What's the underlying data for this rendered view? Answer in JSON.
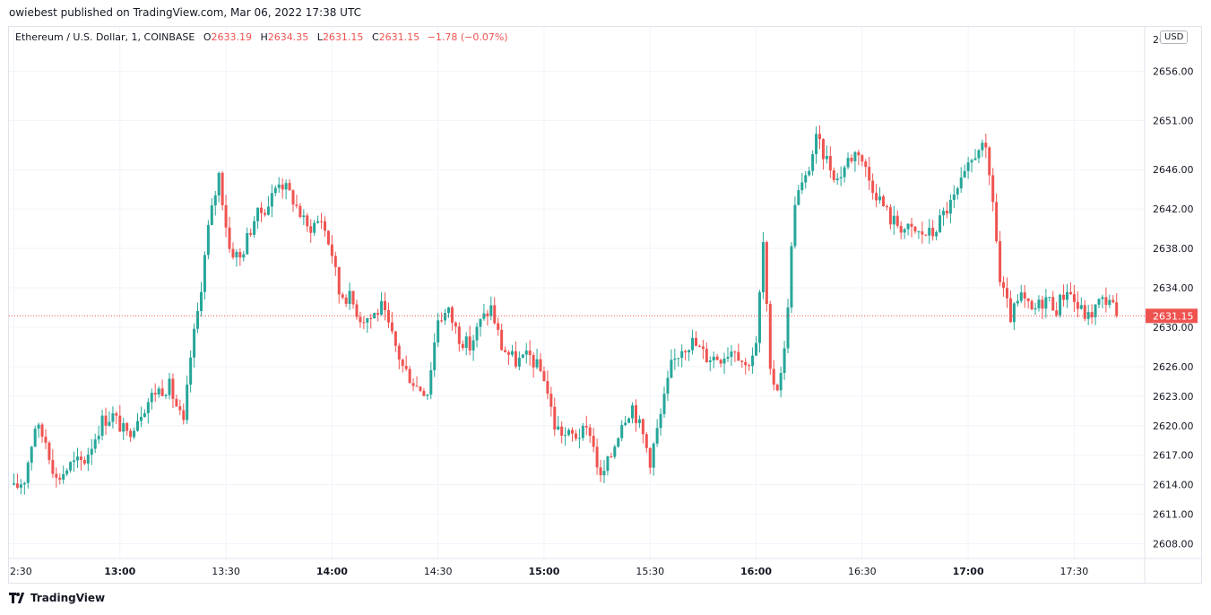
{
  "header": {
    "published": "owiebest published on TradingView.com, Mar 06, 2022 17:38 UTC"
  },
  "legend": {
    "symbol": "Ethereum / U.S. Dollar, 1, COINBASE",
    "open_label": "O",
    "open": "2633.19",
    "high_label": "H",
    "high": "2634.35",
    "low_label": "L",
    "low": "2631.15",
    "close_label": "C",
    "close": "2631.15",
    "change": "−1.78 (−0.07%)"
  },
  "currency_badge": "USD",
  "last_price_label": "2631.15",
  "footer": {
    "brand": "TradingView",
    "logo_icon": "tradingview-logo-icon"
  },
  "colors": {
    "up": "#26a69a",
    "down": "#ef5350",
    "grid": "#f0f3fa",
    "price_line": "#ef5350"
  },
  "chart_data": {
    "type": "candlestick",
    "title": "Ethereum / U.S. Dollar, 1, COINBASE",
    "ylim": [
      2606.5,
      2660.5
    ],
    "y_ticks": [
      2608.0,
      2611.0,
      2614.0,
      2617.0,
      2620.0,
      2623.0,
      2626.0,
      2630.0,
      2634.0,
      2638.0,
      2642.0,
      2646.0,
      2651.0,
      2656.0
    ],
    "y_tick_labels": [
      "2608.00",
      "2611.00",
      "2614.00",
      "2617.00",
      "2620.00",
      "2623.00",
      "2626.00",
      "2630.00",
      "2634.00",
      "2638.00",
      "2642.00",
      "2646.00",
      "2651.00",
      "2656.00"
    ],
    "x_ticks": [
      {
        "label": "2:30",
        "minute": 0,
        "bold": false
      },
      {
        "label": "13:00",
        "minute": 30,
        "bold": true
      },
      {
        "label": "13:30",
        "minute": 60,
        "bold": false
      },
      {
        "label": "14:00",
        "minute": 90,
        "bold": true
      },
      {
        "label": "14:30",
        "minute": 120,
        "bold": false
      },
      {
        "label": "15:00",
        "minute": 150,
        "bold": true
      },
      {
        "label": "15:30",
        "minute": 180,
        "bold": false
      },
      {
        "label": "16:00",
        "minute": 210,
        "bold": true
      },
      {
        "label": "16:30",
        "minute": 240,
        "bold": false
      },
      {
        "label": "17:00",
        "minute": 270,
        "bold": true
      },
      {
        "label": "17:30",
        "minute": 300,
        "bold": false
      }
    ],
    "last_price": 2631.15,
    "close_path": [
      [
        0,
        2613.5
      ],
      [
        3,
        2614.6
      ],
      [
        6,
        2620.0
      ],
      [
        9,
        2618.5
      ],
      [
        12,
        2614.5
      ],
      [
        16,
        2616.0
      ],
      [
        20,
        2616.5
      ],
      [
        25,
        2620.5
      ],
      [
        28,
        2621.0
      ],
      [
        32,
        2619.0
      ],
      [
        36,
        2621.5
      ],
      [
        40,
        2623.5
      ],
      [
        44,
        2624.0
      ],
      [
        48,
        2620.0
      ],
      [
        50,
        2627.0
      ],
      [
        52,
        2631.5
      ],
      [
        55,
        2640.0
      ],
      [
        58,
        2645.5
      ],
      [
        61,
        2638.0
      ],
      [
        64,
        2637.0
      ],
      [
        68,
        2641.0
      ],
      [
        72,
        2642.5
      ],
      [
        75,
        2645.0
      ],
      [
        79,
        2643.0
      ],
      [
        83,
        2640.0
      ],
      [
        87,
        2641.0
      ],
      [
        90,
        2637.5
      ],
      [
        92,
        2633.5
      ],
      [
        95,
        2633.0
      ],
      [
        98,
        2631.0
      ],
      [
        101,
        2631.0
      ],
      [
        104,
        2632.0
      ],
      [
        107,
        2629.0
      ],
      [
        110,
        2626.0
      ],
      [
        114,
        2624.0
      ],
      [
        117,
        2623.5
      ],
      [
        120,
        2631.0
      ],
      [
        123,
        2631.5
      ],
      [
        126,
        2629.0
      ],
      [
        129,
        2628.0
      ],
      [
        132,
        2630.5
      ],
      [
        135,
        2632.0
      ],
      [
        138,
        2628.0
      ],
      [
        142,
        2626.5
      ],
      [
        146,
        2627.0
      ],
      [
        150,
        2625.0
      ],
      [
        153,
        2620.0
      ],
      [
        156,
        2619.0
      ],
      [
        159,
        2619.0
      ],
      [
        163,
        2619.5
      ],
      [
        166,
        2614.5
      ],
      [
        169,
        2617.0
      ],
      [
        172,
        2620.5
      ],
      [
        175,
        2622.0
      ],
      [
        178,
        2619.0
      ],
      [
        180,
        2616.5
      ],
      [
        183,
        2621.0
      ],
      [
        186,
        2626.0
      ],
      [
        189,
        2628.0
      ],
      [
        192,
        2628.5
      ],
      [
        196,
        2627.0
      ],
      [
        200,
        2627.0
      ],
      [
        204,
        2628.0
      ],
      [
        207,
        2626.0
      ],
      [
        210,
        2628.0
      ],
      [
        212,
        2638.5
      ],
      [
        214,
        2625.0
      ],
      [
        216,
        2624.0
      ],
      [
        218,
        2627.5
      ],
      [
        221,
        2643.0
      ],
      [
        224,
        2645.0
      ],
      [
        227,
        2649.0
      ],
      [
        230,
        2647.0
      ],
      [
        233,
        2645.0
      ],
      [
        236,
        2647.0
      ],
      [
        239,
        2648.0
      ],
      [
        242,
        2645.0
      ],
      [
        245,
        2643.0
      ],
      [
        248,
        2641.0
      ],
      [
        252,
        2640.0
      ],
      [
        256,
        2639.5
      ],
      [
        260,
        2639.5
      ],
      [
        263,
        2641.5
      ],
      [
        266,
        2643.0
      ],
      [
        270,
        2646.0
      ],
      [
        273,
        2648.5
      ],
      [
        275,
        2647.5
      ],
      [
        277,
        2643.0
      ],
      [
        279,
        2634.5
      ],
      [
        282,
        2631.0
      ],
      [
        285,
        2633.0
      ],
      [
        288,
        2631.5
      ],
      [
        292,
        2633.0
      ],
      [
        295,
        2632.0
      ],
      [
        298,
        2634.0
      ],
      [
        301,
        2632.0
      ],
      [
        304,
        2631.0
      ],
      [
        307,
        2632.5
      ],
      [
        310,
        2633.0
      ],
      [
        312,
        2631.15
      ]
    ]
  }
}
